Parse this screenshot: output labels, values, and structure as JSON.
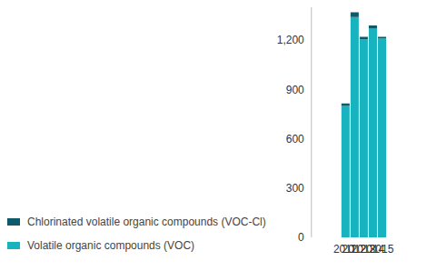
{
  "chart_data": {
    "type": "bar",
    "stacked": true,
    "categories": [
      "2011",
      "2012",
      "2013",
      "2014",
      "2015"
    ],
    "series": [
      {
        "name": "Volatile organic compounds (VOC)",
        "color": "#17b3bf",
        "values": [
          800,
          1340,
          1205,
          1270,
          1210
        ]
      },
      {
        "name": "Chlorinated volatile organic compounds (VOC-Cl)",
        "color": "#0e5a68",
        "values": [
          15,
          30,
          15,
          20,
          10
        ]
      }
    ],
    "ylim": [
      0,
      1400
    ],
    "yticks": [
      0,
      300,
      600,
      900,
      {
        "value": 1200,
        "label": "1,200"
      }
    ],
    "grid": false,
    "legend": "bottom-left"
  }
}
